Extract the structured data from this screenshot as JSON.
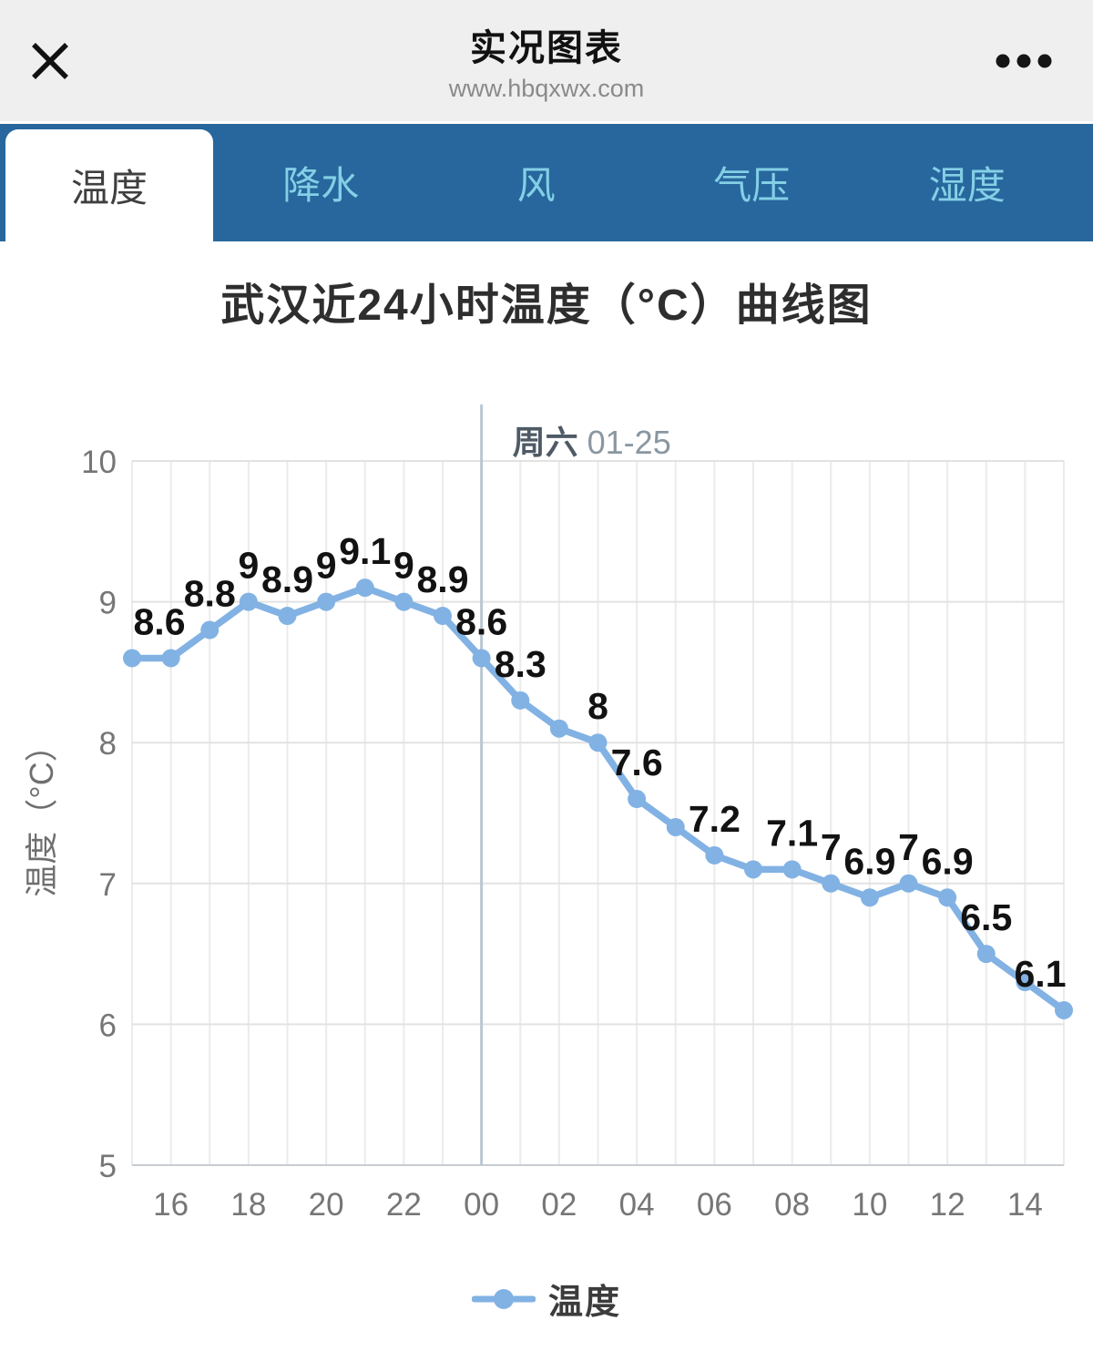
{
  "header": {
    "title": "实况图表",
    "url": "www.hbqxwx.com"
  },
  "tabs": {
    "active": "温度",
    "items": [
      {
        "label": "温度",
        "active": true
      },
      {
        "label": "降水",
        "active": false
      },
      {
        "label": "风",
        "active": false
      },
      {
        "label": "气压",
        "active": false
      },
      {
        "label": "湿度",
        "active": false
      }
    ]
  },
  "colors": {
    "header_bg": "#efefef",
    "tabbar_bg": "#27679d",
    "tab_inactive_text": "#84cfe6",
    "tab_active_text": "#3f3f3f",
    "line": "#82b2e4"
  },
  "chart_data": {
    "type": "line",
    "title": "武汉近24小时温度（°C）曲线图",
    "ylabel": "温度（°C）",
    "xlabel": "",
    "ylim": [
      5,
      10
    ],
    "yticks": [
      5,
      6,
      7,
      8,
      9,
      10
    ],
    "grid": true,
    "line_color": "#82b2e4",
    "x_hours": [
      "15",
      "16",
      "17",
      "18",
      "19",
      "20",
      "21",
      "22",
      "23",
      "00",
      "01",
      "02",
      "03",
      "04",
      "05",
      "06",
      "07",
      "08",
      "09",
      "10",
      "11",
      "12",
      "13",
      "14",
      "15"
    ],
    "values": [
      8.6,
      8.6,
      8.8,
      9,
      8.9,
      9,
      9.1,
      9,
      8.9,
      8.6,
      8.3,
      8.1,
      8,
      7.6,
      7.4,
      7.2,
      7.1,
      7.1,
      7,
      6.9,
      7,
      6.9,
      6.5,
      6.3,
      6.1
    ],
    "point_labels": [
      "8.6",
      null,
      "8.8",
      "9",
      "8.9",
      "9",
      "9.1",
      "9",
      "8.9",
      "8.6",
      "8.3",
      null,
      "8",
      "7.6",
      null,
      "7.2",
      null,
      "7.1",
      "7",
      "6.9",
      "7",
      "6.9",
      "6.5",
      null,
      "6.1"
    ],
    "xtick_labels": [
      "16",
      "18",
      "20",
      "22",
      "00",
      "02",
      "04",
      "06",
      "08",
      "10",
      "12",
      "14"
    ],
    "annotation": {
      "bold": "周六",
      "text": "01-25",
      "x_index": 9
    },
    "legend": [
      {
        "name": "温度",
        "color": "#82b2e4"
      }
    ],
    "legend_position": "bottom"
  }
}
